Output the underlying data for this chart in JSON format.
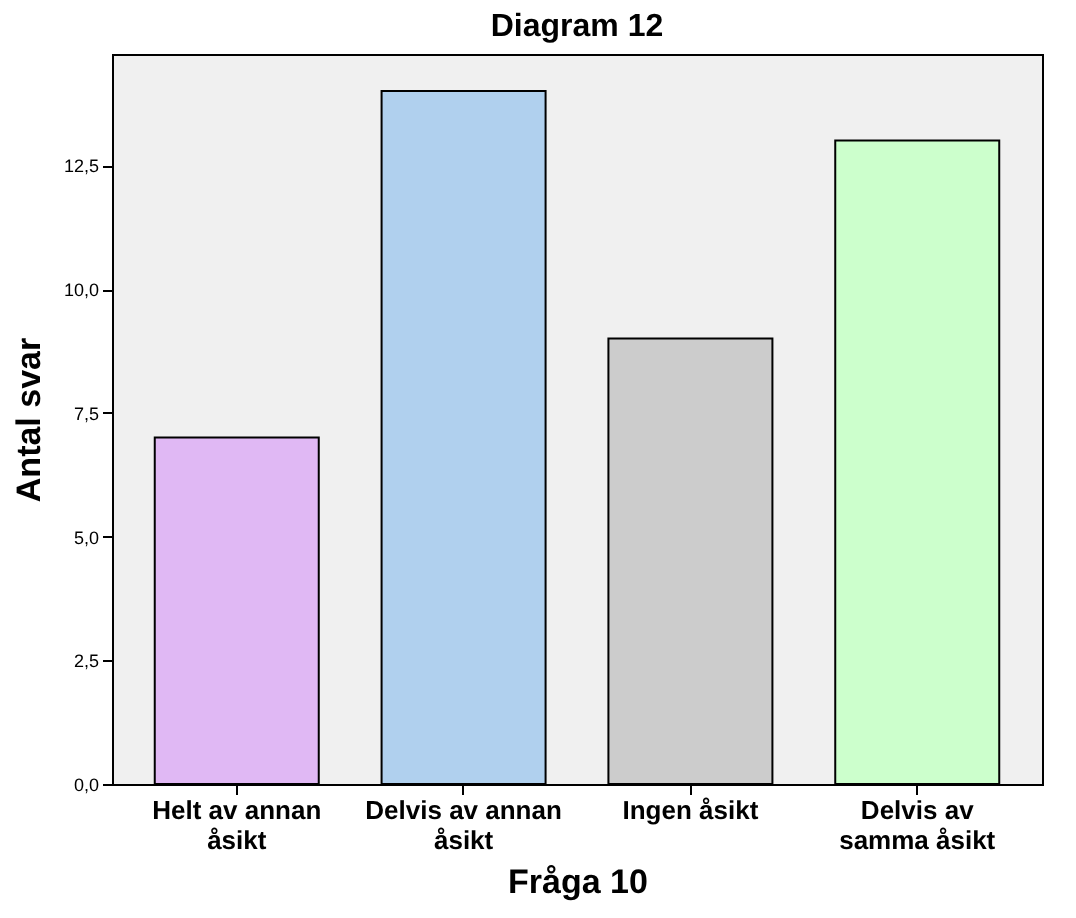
{
  "chart_data": {
    "type": "bar",
    "title": "Diagram 12",
    "xlabel": "Fråga 10",
    "ylabel": "Antal svar",
    "categories": [
      "Helt av annan\nåsikt",
      "Delvis av annan\nåsikt",
      "Ingen åsikt",
      "Delvis av\nsamma åsikt"
    ],
    "values": [
      7,
      14,
      9,
      13
    ],
    "colors": [
      "#e0b8f4",
      "#b0d0ee",
      "#cccccc",
      "#ccffcc"
    ],
    "ylim": [
      0,
      14.75
    ],
    "yticks": [
      {
        "value": 0,
        "label": "0,0"
      },
      {
        "value": 2.5,
        "label": "2,5"
      },
      {
        "value": 5,
        "label": "5,0"
      },
      {
        "value": 7.5,
        "label": "7,5"
      },
      {
        "value": 10,
        "label": "10,0"
      },
      {
        "value": 12.5,
        "label": "12,5"
      }
    ],
    "grid": false
  }
}
